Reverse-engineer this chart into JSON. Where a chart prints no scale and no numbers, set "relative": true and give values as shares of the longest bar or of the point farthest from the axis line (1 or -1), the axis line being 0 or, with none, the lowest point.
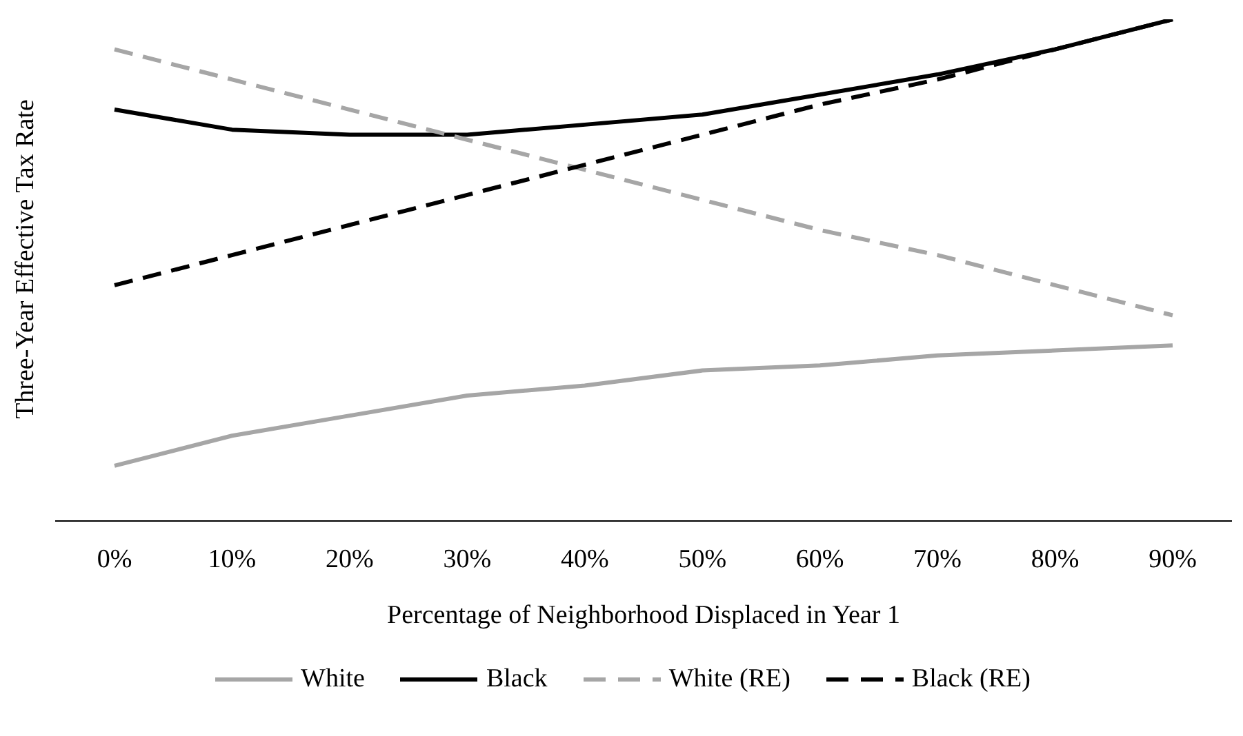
{
  "chart_data": {
    "type": "line",
    "relative": true,
    "xlabel": "Percentage of Neighborhood Displaced in Year 1",
    "ylabel": "Three-Year Effective Tax Rate",
    "categories": [
      "0%",
      "10%",
      "20%",
      "30%",
      "40%",
      "50%",
      "60%",
      "70%",
      "80%",
      "90%"
    ],
    "series": [
      {
        "name": "White",
        "color": "#a6a6a6",
        "line_style": "solid",
        "values": [
          0.11,
          0.17,
          0.21,
          0.25,
          0.27,
          0.3,
          0.31,
          0.33,
          0.34,
          0.35
        ]
      },
      {
        "name": "Black",
        "color": "#000000",
        "line_style": "solid",
        "values": [
          0.82,
          0.78,
          0.77,
          0.77,
          0.79,
          0.81,
          0.85,
          0.89,
          0.94,
          1
        ]
      },
      {
        "name": "White (RE)",
        "color": "#a6a6a6",
        "line_style": "dashed",
        "values": [
          0.94,
          0.88,
          0.82,
          0.76,
          0.7,
          0.64,
          0.58,
          0.53,
          0.47,
          0.41
        ]
      },
      {
        "name": "Black (RE)",
        "color": "#000000",
        "line_style": "dashed",
        "values": [
          0.47,
          0.53,
          0.59,
          0.65,
          0.71,
          0.77,
          0.83,
          0.88,
          0.94,
          1
        ]
      }
    ],
    "legend": "bottom",
    "grid": false,
    "marker": "none"
  }
}
